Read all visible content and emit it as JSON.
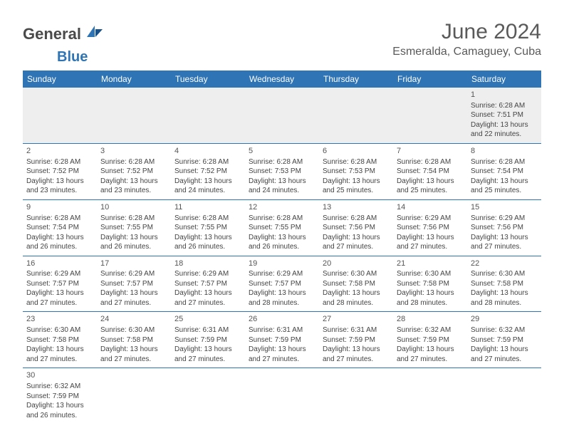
{
  "logo": {
    "text1": "General",
    "text2": "Blue"
  },
  "title": "June 2024",
  "location": "Esmeralda, Camaguey, Cuba",
  "colors": {
    "header_bg": "#2f74b5",
    "header_fg": "#ffffff",
    "rule": "#2f74b5",
    "shade": "#eeeeee"
  },
  "weekdays": [
    "Sunday",
    "Monday",
    "Tuesday",
    "Wednesday",
    "Thursday",
    "Friday",
    "Saturday"
  ],
  "labels": {
    "sunrise": "Sunrise:",
    "sunset": "Sunset:",
    "daylight": "Daylight:"
  },
  "weeks": [
    [
      null,
      null,
      null,
      null,
      null,
      null,
      {
        "n": "1",
        "sr": "6:28 AM",
        "ss": "7:51 PM",
        "dl": "13 hours and 22 minutes."
      }
    ],
    [
      {
        "n": "2",
        "sr": "6:28 AM",
        "ss": "7:52 PM",
        "dl": "13 hours and 23 minutes."
      },
      {
        "n": "3",
        "sr": "6:28 AM",
        "ss": "7:52 PM",
        "dl": "13 hours and 23 minutes."
      },
      {
        "n": "4",
        "sr": "6:28 AM",
        "ss": "7:52 PM",
        "dl": "13 hours and 24 minutes."
      },
      {
        "n": "5",
        "sr": "6:28 AM",
        "ss": "7:53 PM",
        "dl": "13 hours and 24 minutes."
      },
      {
        "n": "6",
        "sr": "6:28 AM",
        "ss": "7:53 PM",
        "dl": "13 hours and 25 minutes."
      },
      {
        "n": "7",
        "sr": "6:28 AM",
        "ss": "7:54 PM",
        "dl": "13 hours and 25 minutes."
      },
      {
        "n": "8",
        "sr": "6:28 AM",
        "ss": "7:54 PM",
        "dl": "13 hours and 25 minutes."
      }
    ],
    [
      {
        "n": "9",
        "sr": "6:28 AM",
        "ss": "7:54 PM",
        "dl": "13 hours and 26 minutes."
      },
      {
        "n": "10",
        "sr": "6:28 AM",
        "ss": "7:55 PM",
        "dl": "13 hours and 26 minutes."
      },
      {
        "n": "11",
        "sr": "6:28 AM",
        "ss": "7:55 PM",
        "dl": "13 hours and 26 minutes."
      },
      {
        "n": "12",
        "sr": "6:28 AM",
        "ss": "7:55 PM",
        "dl": "13 hours and 26 minutes."
      },
      {
        "n": "13",
        "sr": "6:28 AM",
        "ss": "7:56 PM",
        "dl": "13 hours and 27 minutes."
      },
      {
        "n": "14",
        "sr": "6:29 AM",
        "ss": "7:56 PM",
        "dl": "13 hours and 27 minutes."
      },
      {
        "n": "15",
        "sr": "6:29 AM",
        "ss": "7:56 PM",
        "dl": "13 hours and 27 minutes."
      }
    ],
    [
      {
        "n": "16",
        "sr": "6:29 AM",
        "ss": "7:57 PM",
        "dl": "13 hours and 27 minutes."
      },
      {
        "n": "17",
        "sr": "6:29 AM",
        "ss": "7:57 PM",
        "dl": "13 hours and 27 minutes."
      },
      {
        "n": "18",
        "sr": "6:29 AM",
        "ss": "7:57 PM",
        "dl": "13 hours and 27 minutes."
      },
      {
        "n": "19",
        "sr": "6:29 AM",
        "ss": "7:57 PM",
        "dl": "13 hours and 28 minutes."
      },
      {
        "n": "20",
        "sr": "6:30 AM",
        "ss": "7:58 PM",
        "dl": "13 hours and 28 minutes."
      },
      {
        "n": "21",
        "sr": "6:30 AM",
        "ss": "7:58 PM",
        "dl": "13 hours and 28 minutes."
      },
      {
        "n": "22",
        "sr": "6:30 AM",
        "ss": "7:58 PM",
        "dl": "13 hours and 28 minutes."
      }
    ],
    [
      {
        "n": "23",
        "sr": "6:30 AM",
        "ss": "7:58 PM",
        "dl": "13 hours and 27 minutes."
      },
      {
        "n": "24",
        "sr": "6:30 AM",
        "ss": "7:58 PM",
        "dl": "13 hours and 27 minutes."
      },
      {
        "n": "25",
        "sr": "6:31 AM",
        "ss": "7:59 PM",
        "dl": "13 hours and 27 minutes."
      },
      {
        "n": "26",
        "sr": "6:31 AM",
        "ss": "7:59 PM",
        "dl": "13 hours and 27 minutes."
      },
      {
        "n": "27",
        "sr": "6:31 AM",
        "ss": "7:59 PM",
        "dl": "13 hours and 27 minutes."
      },
      {
        "n": "28",
        "sr": "6:32 AM",
        "ss": "7:59 PM",
        "dl": "13 hours and 27 minutes."
      },
      {
        "n": "29",
        "sr": "6:32 AM",
        "ss": "7:59 PM",
        "dl": "13 hours and 27 minutes."
      }
    ],
    [
      {
        "n": "30",
        "sr": "6:32 AM",
        "ss": "7:59 PM",
        "dl": "13 hours and 26 minutes."
      },
      null,
      null,
      null,
      null,
      null,
      null
    ]
  ]
}
